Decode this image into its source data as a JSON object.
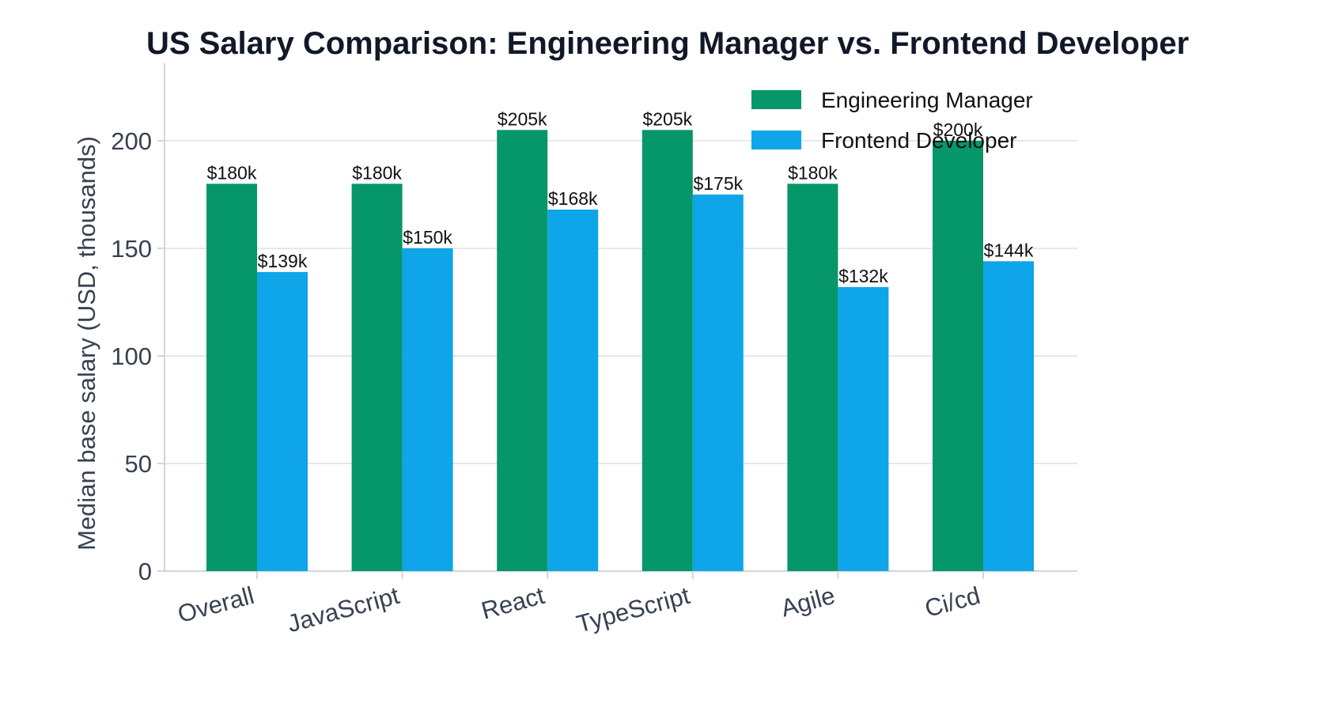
{
  "chart_data": {
    "type": "bar",
    "title": "US Salary Comparison: Engineering Manager vs. Frontend Developer",
    "xlabel": "",
    "ylabel": "Median base salary (USD, thousands)",
    "categories": [
      "Overall",
      "JavaScript",
      "React",
      "TypeScript",
      "Agile",
      "Ci/cd"
    ],
    "series": [
      {
        "name": "Engineering Manager",
        "color": "#059669",
        "values": [
          180,
          180,
          205,
          205,
          180,
          200
        ],
        "labels": [
          "$180k",
          "$180k",
          "$205k",
          "$205k",
          "$180k",
          "$200k"
        ]
      },
      {
        "name": "Frontend Developer",
        "color": "#0ea5e9",
        "values": [
          139,
          150,
          168,
          175,
          132,
          144
        ],
        "labels": [
          "$139k",
          "$150k",
          "$168k",
          "$175k",
          "$132k",
          "$144k"
        ]
      }
    ],
    "ylim": [
      0,
      236
    ],
    "yticks": [
      0,
      50,
      100,
      150,
      200
    ],
    "ytick_labels": [
      "0",
      "50",
      "100",
      "150",
      "200"
    ],
    "grid": "y",
    "legend": "top-right"
  }
}
